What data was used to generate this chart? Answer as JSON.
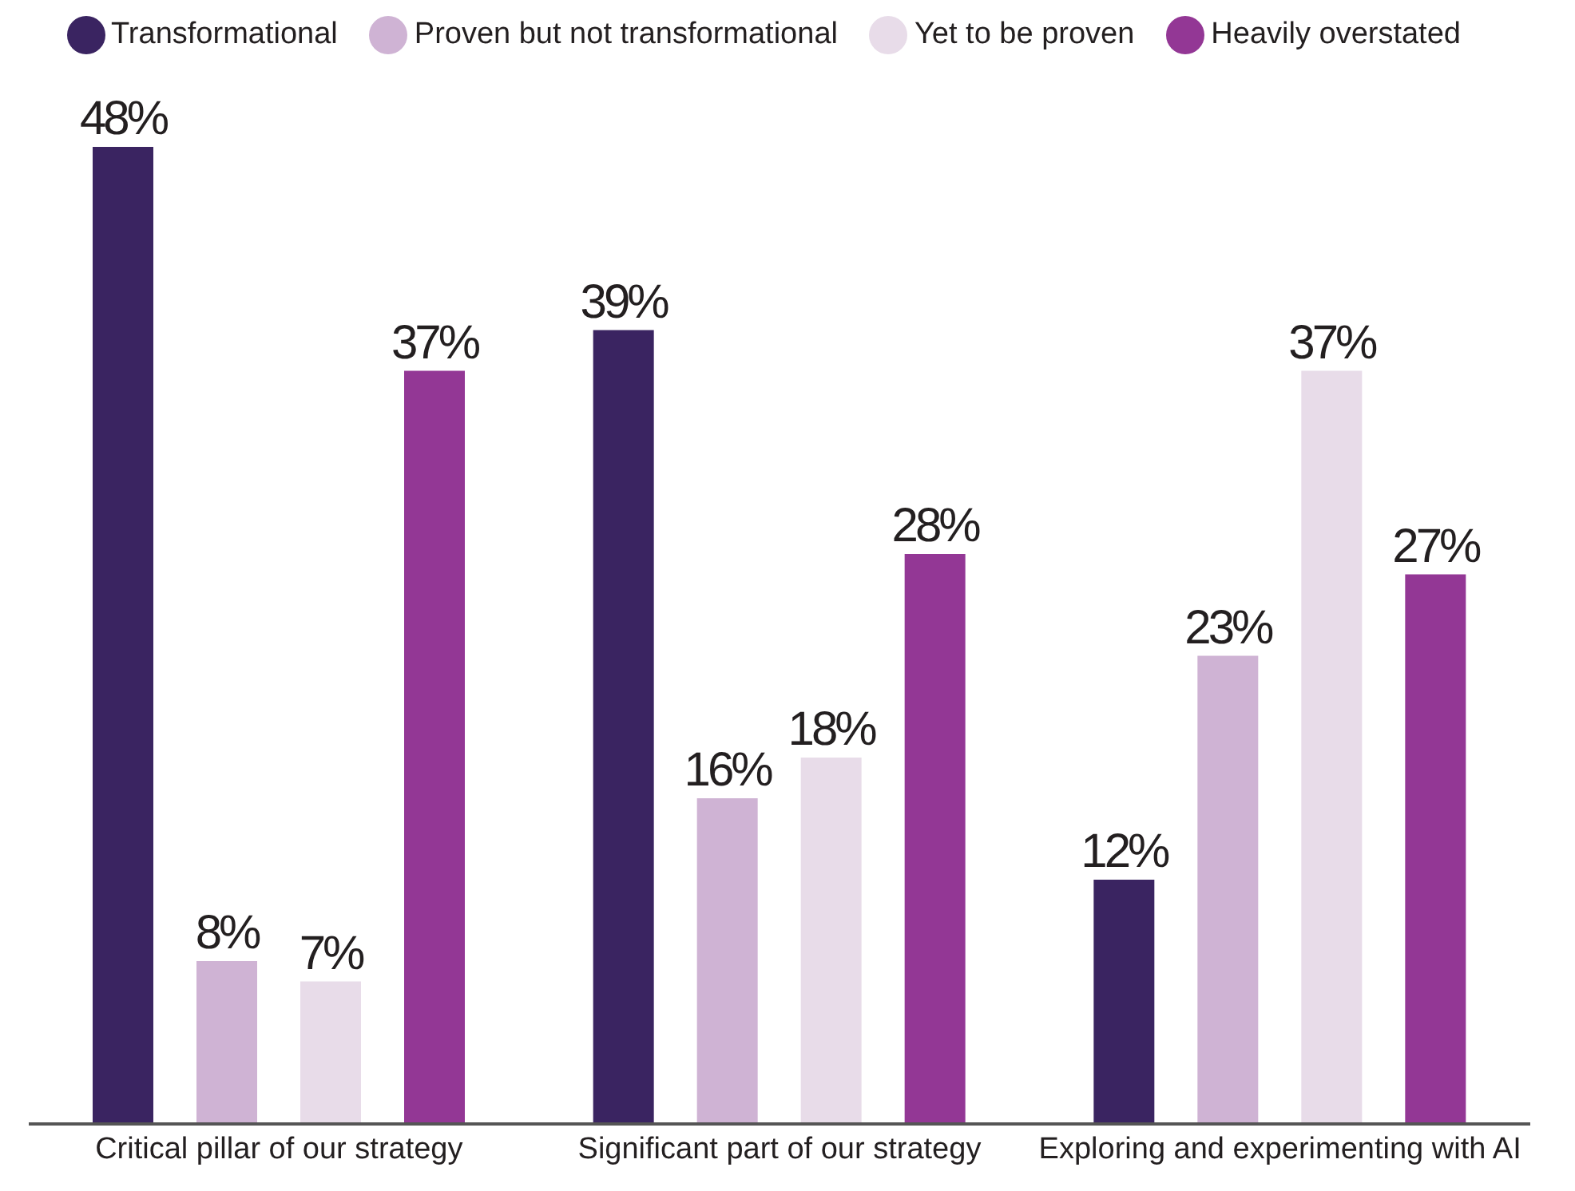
{
  "chart_data": {
    "type": "bar",
    "categories": [
      "Critical pillar of our strategy",
      "Significant part of our strategy",
      "Exploring and experimenting with AI"
    ],
    "series": [
      {
        "name": "Transformational",
        "color": "#3a2461",
        "values": [
          48,
          39,
          12
        ],
        "value_labels": [
          "48%",
          "39%",
          "12%"
        ]
      },
      {
        "name": "Proven but not transformational",
        "color": "#cfb3d4",
        "values": [
          8,
          16,
          23
        ],
        "value_labels": [
          "8%",
          "16%",
          "23%"
        ]
      },
      {
        "name": "Yet to be proven",
        "color": "#e8dce9",
        "values": [
          7,
          18,
          37
        ],
        "value_labels": [
          "7%",
          "18%",
          "37%"
        ]
      },
      {
        "name": "Heavily overstated",
        "color": "#933795",
        "values": [
          37,
          28,
          27
        ],
        "value_labels": [
          "37%",
          "28%",
          "27%"
        ]
      }
    ],
    "legend": "top"
  }
}
